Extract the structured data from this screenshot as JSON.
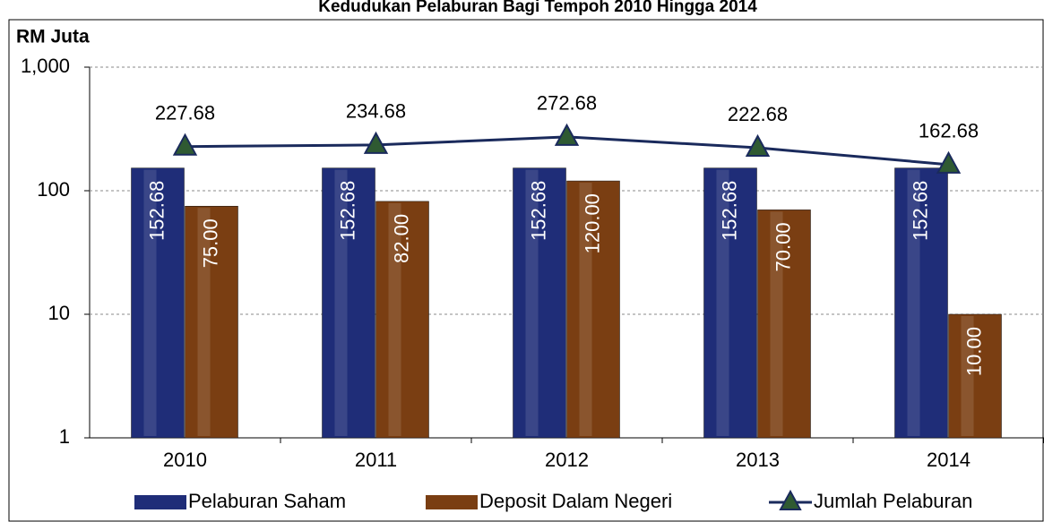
{
  "chart_data": {
    "type": "bar",
    "title": "Kedudukan Pelaburan Bagi Tempoh 2010 Hingga 2014",
    "y_axis_label": "RM Juta",
    "categories": [
      "2010",
      "2011",
      "2012",
      "2013",
      "2014"
    ],
    "series": [
      {
        "name": "Pelaburan Saham",
        "color": "#1f2d78",
        "type": "bar",
        "values": [
          152.68,
          152.68,
          152.68,
          152.68,
          152.68
        ]
      },
      {
        "name": "Deposit Dalam Negeri",
        "color": "#7a3e12",
        "type": "bar",
        "values": [
          75,
          82,
          120,
          70,
          10
        ],
        "value_labels": [
          "75.00",
          "82.00",
          "120.00",
          "70.00",
          "10.00"
        ]
      },
      {
        "name": "Jumlah Pelaburan",
        "color": "#1a2a5c",
        "marker_color": "#2f5a32",
        "type": "line",
        "values": [
          227.68,
          234.68,
          272.68,
          222.68,
          162.68
        ]
      }
    ],
    "log_scale": true,
    "ylim": [
      1,
      1000
    ],
    "yticks": [
      1,
      10,
      100,
      {
        "value": 1000,
        "label": "1,000"
      }
    ],
    "grid": true,
    "legend": "bottom"
  }
}
